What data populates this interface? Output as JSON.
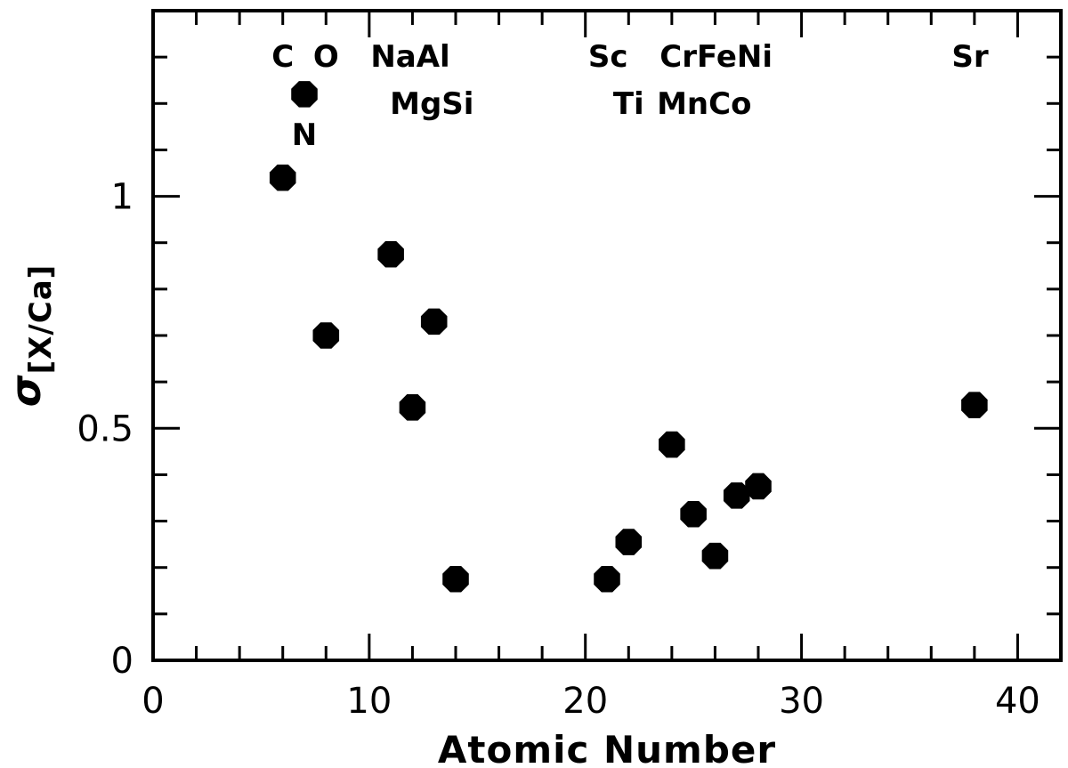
{
  "chart_data": {
    "type": "scatter",
    "title": "",
    "xlabel": "Atomic Number",
    "ylabel": "σ[X/Ca]",
    "ylabel_main": "σ",
    "ylabel_sub": "[X/Ca]",
    "xlim": [
      0,
      42
    ],
    "ylim": [
      0,
      1.4
    ],
    "x_major_ticks": [
      0,
      10,
      20,
      30,
      40
    ],
    "x_tick_labels": [
      "0",
      "10",
      "20",
      "30",
      "40"
    ],
    "x_minor_step": 2,
    "y_major_ticks": [
      0,
      0.5,
      1
    ],
    "y_tick_labels": [
      "0",
      "0.5",
      "1"
    ],
    "y_minor_step": 0.1,
    "grid": false,
    "legend": "none",
    "marker_color": "#000000",
    "points": [
      {
        "x": 6,
        "y": 1.04
      },
      {
        "x": 7,
        "y": 1.22
      },
      {
        "x": 8,
        "y": 0.7
      },
      {
        "x": 11,
        "y": 0.875
      },
      {
        "x": 12,
        "y": 0.545
      },
      {
        "x": 13,
        "y": 0.73
      },
      {
        "x": 14,
        "y": 0.175
      },
      {
        "x": 21,
        "y": 0.175
      },
      {
        "x": 22,
        "y": 0.255
      },
      {
        "x": 24,
        "y": 0.465
      },
      {
        "x": 25,
        "y": 0.315
      },
      {
        "x": 26,
        "y": 0.225
      },
      {
        "x": 27,
        "y": 0.355
      },
      {
        "x": 28,
        "y": 0.375
      },
      {
        "x": 38,
        "y": 0.55
      }
    ],
    "element_labels_top": [
      {
        "text": "C",
        "x": 6
      },
      {
        "text": "O",
        "x": 8
      },
      {
        "text": "NaAl",
        "x": 11.9
      },
      {
        "text": "Sc",
        "x": 21.05
      },
      {
        "text": "CrFeNi",
        "x": 26.05
      },
      {
        "text": "Sr",
        "x": 37.8
      }
    ],
    "element_labels_mid": [
      {
        "text": "MgSi",
        "x": 12.9
      },
      {
        "text": "Ti",
        "x": 22.0
      },
      {
        "text": "MnCo",
        "x": 25.5
      }
    ],
    "element_labels_low": [
      {
        "text": "N",
        "x": 7
      }
    ]
  }
}
